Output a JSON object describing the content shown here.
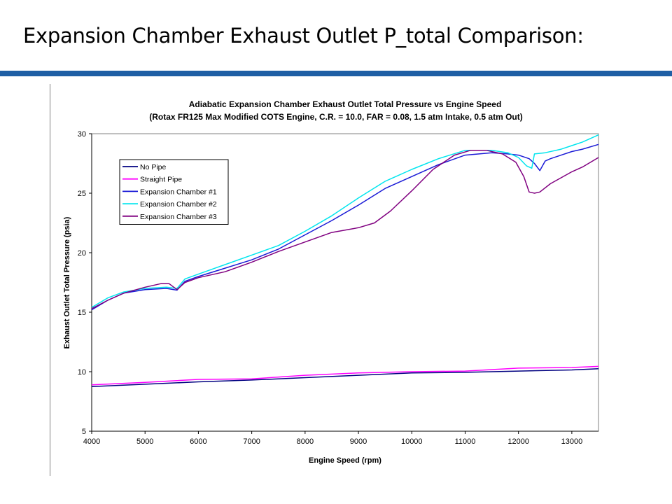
{
  "slide": {
    "title": "Expansion Chamber Exhaust Outlet P_total Comparison:"
  },
  "colors": {
    "title_rule": "#1f5fa5",
    "no_pipe": "#000080",
    "straight_pipe": "#ff00ff",
    "expansion_chamber_1": "#1a1ad6",
    "expansion_chamber_2": "#00e5ee",
    "expansion_chamber_3": "#800080"
  },
  "chart_data": {
    "type": "line",
    "title": "Adiabatic Expansion Chamber Exhaust Outlet Total Pressure vs Engine Speed",
    "subtitle": "(Rotax FR125 Max Modified COTS Engine, C.R. = 10.0, FAR = 0.08, 1.5 atm Intake, 0.5 atm Out)",
    "xlabel": "Engine Speed (rpm)",
    "ylabel": "Exhaust Outlet Total Pressure (psia)",
    "xlim": [
      4000,
      13500
    ],
    "ylim": [
      5,
      30
    ],
    "xticks": [
      4000,
      5000,
      6000,
      7000,
      8000,
      9000,
      10000,
      11000,
      12000,
      13000
    ],
    "yticks": [
      5,
      10,
      15,
      20,
      25,
      30
    ],
    "grid": true,
    "legend_position": "upper-left",
    "series": [
      {
        "name": "No Pipe",
        "color": "#000080",
        "x": [
          4000,
          5000,
          6000,
          7000,
          8000,
          9000,
          10000,
          11000,
          12000,
          13000,
          13500
        ],
        "y": [
          8.75,
          8.95,
          9.15,
          9.3,
          9.5,
          9.7,
          9.9,
          9.95,
          10.05,
          10.15,
          10.25
        ]
      },
      {
        "name": "Straight Pipe",
        "color": "#ff00ff",
        "x": [
          4000,
          5000,
          6000,
          7000,
          8000,
          9000,
          10000,
          11000,
          12000,
          13000,
          13500
        ],
        "y": [
          8.9,
          9.1,
          9.35,
          9.4,
          9.7,
          9.9,
          10.0,
          10.05,
          10.3,
          10.35,
          10.45
        ]
      },
      {
        "name": "Expansion Chamber #1",
        "color": "#1a1ad6",
        "x": [
          4000,
          4300,
          4600,
          5000,
          5400,
          5600,
          5750,
          6000,
          6500,
          7000,
          7500,
          8000,
          8500,
          9000,
          9500,
          10000,
          10500,
          11000,
          11500,
          11800,
          12000,
          12200,
          12300,
          12400,
          12500,
          12600,
          12800,
          13000,
          13200,
          13500
        ],
        "y": [
          15.2,
          16.0,
          16.6,
          16.9,
          17.0,
          16.85,
          17.6,
          18.0,
          18.7,
          19.4,
          20.3,
          21.5,
          22.7,
          24.0,
          25.4,
          26.4,
          27.4,
          28.2,
          28.4,
          28.3,
          28.2,
          27.9,
          27.5,
          26.9,
          27.7,
          27.9,
          28.2,
          28.5,
          28.7,
          29.1
        ]
      },
      {
        "name": "Expansion Chamber #2",
        "color": "#00e5ee",
        "x": [
          4000,
          4300,
          4600,
          5000,
          5400,
          5600,
          5750,
          6000,
          6500,
          7000,
          7500,
          8000,
          8500,
          9000,
          9500,
          10000,
          10500,
          11000,
          11500,
          11800,
          12000,
          12150,
          12250,
          12300,
          12500,
          12800,
          13000,
          13200,
          13500
        ],
        "y": [
          15.4,
          16.2,
          16.7,
          17.0,
          17.1,
          17.0,
          17.8,
          18.2,
          19.0,
          19.8,
          20.6,
          21.8,
          23.1,
          24.6,
          26.0,
          27.0,
          27.9,
          28.6,
          28.6,
          28.4,
          28.0,
          27.3,
          27.1,
          28.3,
          28.4,
          28.7,
          29.0,
          29.3,
          29.9
        ]
      },
      {
        "name": "Expansion Chamber #3",
        "color": "#800080",
        "x": [
          4000,
          4300,
          4600,
          5000,
          5300,
          5450,
          5600,
          5750,
          6000,
          6500,
          7000,
          7500,
          8000,
          8500,
          9000,
          9300,
          9600,
          10000,
          10400,
          10800,
          11100,
          11400,
          11700,
          11950,
          12100,
          12200,
          12300,
          12400,
          12600,
          12800,
          13000,
          13200,
          13500
        ],
        "y": [
          15.3,
          16.0,
          16.6,
          17.1,
          17.4,
          17.4,
          16.9,
          17.5,
          17.9,
          18.4,
          19.2,
          20.1,
          20.9,
          21.7,
          22.1,
          22.5,
          23.5,
          25.2,
          27.0,
          28.2,
          28.6,
          28.6,
          28.3,
          27.6,
          26.4,
          25.1,
          25.0,
          25.1,
          25.8,
          26.3,
          26.8,
          27.2,
          28.0
        ]
      }
    ]
  }
}
